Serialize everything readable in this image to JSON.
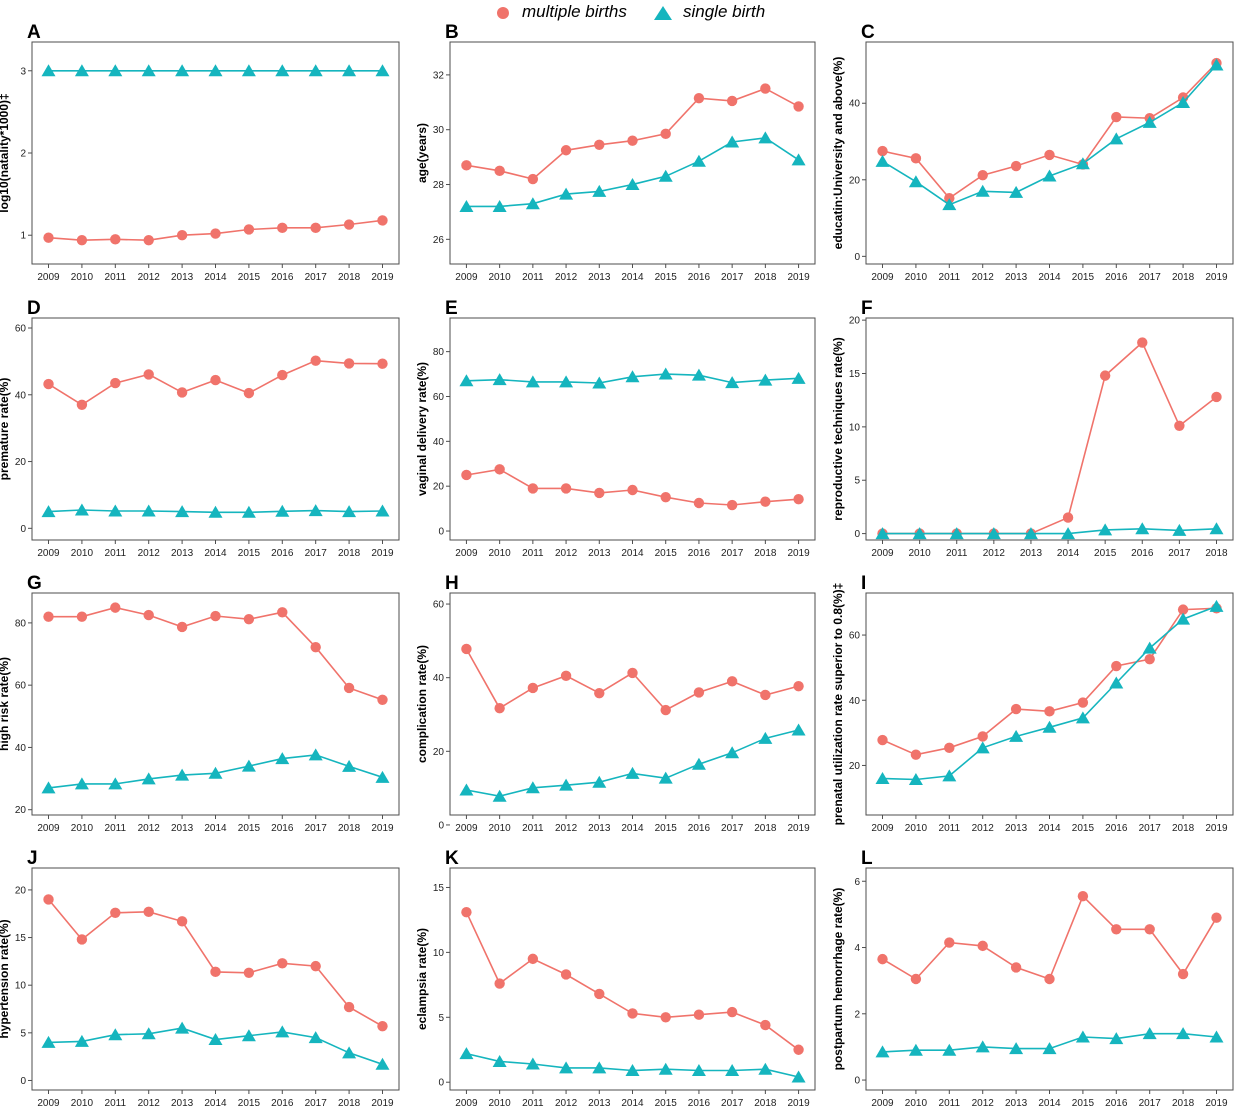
{
  "legend": {
    "multiple_label": "multiple births",
    "single_label": "single birth"
  },
  "colors": {
    "multiple": "#F0736B",
    "single": "#15B5BE",
    "frame": "#4d4d4d",
    "grid": "#ebebeb"
  },
  "chart_data": [
    {
      "tag": "A",
      "type": "line",
      "ylabel": "log10(natality*1000)‡",
      "x": [
        "2009",
        "2010",
        "2011",
        "2012",
        "2013",
        "2014",
        "2015",
        "2016",
        "2017",
        "2018",
        "2019"
      ],
      "ylim": [
        0.65,
        3.35
      ],
      "yticks": [
        1,
        2,
        3
      ],
      "series": [
        {
          "name": "multiple births",
          "values": [
            0.97,
            0.94,
            0.95,
            0.94,
            1.0,
            1.02,
            1.07,
            1.09,
            1.09,
            1.13,
            1.18
          ]
        },
        {
          "name": "single birth",
          "values": [
            3.0,
            3.0,
            3.0,
            3.0,
            3.0,
            3.0,
            3.0,
            3.0,
            3.0,
            3.0,
            3.0
          ]
        }
      ]
    },
    {
      "tag": "B",
      "type": "line",
      "ylabel": "age(years)",
      "x": [
        "2009",
        "2010",
        "2011",
        "2012",
        "2013",
        "2014",
        "2015",
        "2016",
        "2017",
        "2018",
        "2019"
      ],
      "ylim": [
        25.1,
        33.2
      ],
      "yticks": [
        26,
        28,
        30,
        32
      ],
      "series": [
        {
          "name": "multiple births",
          "values": [
            28.7,
            28.5,
            28.2,
            29.25,
            29.45,
            29.6,
            29.85,
            31.15,
            31.05,
            31.5,
            30.85
          ]
        },
        {
          "name": "single birth",
          "values": [
            27.2,
            27.2,
            27.3,
            27.65,
            27.75,
            28.0,
            28.3,
            28.85,
            29.55,
            29.7,
            28.9
          ]
        }
      ]
    },
    {
      "tag": "C",
      "type": "line",
      "ylabel": "educatin:University and above(%)",
      "x": [
        "2009",
        "2010",
        "2011",
        "2012",
        "2013",
        "2014",
        "2015",
        "2016",
        "2017",
        "2018",
        "2019"
      ],
      "ylim": [
        -2,
        56
      ],
      "yticks": [
        0,
        20,
        40
      ],
      "series": [
        {
          "name": "multiple births",
          "values": [
            27.5,
            25.6,
            15.2,
            21.2,
            23.6,
            26.5,
            24.0,
            36.4,
            36.1,
            41.5,
            50.5
          ]
        },
        {
          "name": "single birth",
          "values": [
            24.8,
            19.5,
            13.5,
            17.0,
            16.7,
            21.0,
            24.2,
            30.7,
            35.0,
            40.2,
            50.0
          ]
        }
      ]
    },
    {
      "tag": "D",
      "type": "line",
      "ylabel": "premature rate(%)",
      "x": [
        "2009",
        "2010",
        "2011",
        "2012",
        "2013",
        "2014",
        "2015",
        "2016",
        "2017",
        "2018",
        "2019"
      ],
      "ylim": [
        -3.5,
        63
      ],
      "yticks": [
        0,
        20,
        40,
        60
      ],
      "series": [
        {
          "name": "multiple births",
          "values": [
            43.2,
            37.0,
            43.5,
            46.1,
            40.7,
            44.4,
            40.5,
            45.9,
            50.2,
            49.4,
            49.3
          ]
        },
        {
          "name": "single birth",
          "values": [
            5.0,
            5.5,
            5.2,
            5.2,
            5.0,
            4.8,
            4.8,
            5.1,
            5.3,
            5.0,
            5.2
          ]
        }
      ]
    },
    {
      "tag": "E",
      "type": "line",
      "ylabel": "vaginal delivery rate(%)",
      "x": [
        "2009",
        "2010",
        "2011",
        "2012",
        "2013",
        "2014",
        "2015",
        "2016",
        "2017",
        "2018",
        "2019"
      ],
      "ylim": [
        -4,
        95
      ],
      "yticks": [
        0,
        20,
        40,
        60,
        80
      ],
      "series": [
        {
          "name": "multiple births",
          "values": [
            25.0,
            27.5,
            19.0,
            19.0,
            17.0,
            18.3,
            15.1,
            12.5,
            11.6,
            13.1,
            14.2
          ]
        },
        {
          "name": "single birth",
          "values": [
            67.0,
            67.5,
            66.5,
            66.5,
            66.0,
            68.8,
            70.0,
            69.5,
            66.2,
            67.3,
            68.1
          ]
        }
      ]
    },
    {
      "tag": "F",
      "type": "line",
      "ylabel": "reproductive techniques rate(%)",
      "x": [
        "2009",
        "2010",
        "2011",
        "2012",
        "2013",
        "2014",
        "2015",
        "2016",
        "2017",
        "2018"
      ],
      "ylim": [
        -0.6,
        20.2
      ],
      "yticks": [
        0,
        5,
        10,
        15,
        20
      ],
      "series": [
        {
          "name": "multiple births",
          "values": [
            0,
            0,
            0,
            0,
            0,
            1.5,
            14.8,
            17.9,
            10.1,
            12.8
          ]
        },
        {
          "name": "single birth",
          "values": [
            0,
            0,
            0,
            0,
            0,
            0,
            0.35,
            0.45,
            0.3,
            0.45
          ]
        }
      ]
    },
    {
      "tag": "G",
      "type": "line",
      "ylabel": "high risk rate(%)",
      "x": [
        "2009",
        "2010",
        "2011",
        "2012",
        "2013",
        "2014",
        "2015",
        "2016",
        "2017",
        "2018",
        "2019"
      ],
      "ylim": [
        18.3,
        89.6
      ],
      "yticks": [
        20,
        40,
        60,
        80
      ],
      "series": [
        {
          "name": "multiple births",
          "values": [
            82.0,
            82.0,
            84.9,
            82.5,
            78.7,
            82.2,
            81.2,
            83.4,
            72.2,
            59.1,
            55.3
          ]
        },
        {
          "name": "single birth",
          "values": [
            27.0,
            28.3,
            28.3,
            29.9,
            31.1,
            31.7,
            34.0,
            36.4,
            37.6,
            33.9,
            30.4
          ]
        }
      ]
    },
    {
      "tag": "H",
      "type": "line",
      "ylabel": "complication rate(%)",
      "x": [
        "2009",
        "2010",
        "2011",
        "2012",
        "2013",
        "2014",
        "2015",
        "2016",
        "2017",
        "2018",
        "2019"
      ],
      "ylim": [
        2.7,
        63
      ],
      "yticks": [
        0,
        20,
        40,
        60
      ],
      "series": [
        {
          "name": "multiple births",
          "values": [
            47.8,
            31.7,
            37.2,
            40.5,
            35.8,
            41.3,
            31.2,
            36.0,
            39.0,
            35.3,
            37.7
          ]
        },
        {
          "name": "single birth",
          "values": [
            9.5,
            7.8,
            10.1,
            10.8,
            11.6,
            14.0,
            12.7,
            16.5,
            19.6,
            23.5,
            25.8
          ]
        }
      ]
    },
    {
      "tag": "I",
      "type": "line",
      "ylabel": "prenatal utilization rate superior to 0.8(%)‡",
      "x": [
        "2009",
        "2010",
        "2011",
        "2012",
        "2013",
        "2014",
        "2015",
        "2016",
        "2017",
        "2018",
        "2019"
      ],
      "ylim": [
        4.8,
        72.9
      ],
      "yticks": [
        20,
        40,
        60
      ],
      "series": [
        {
          "name": "multiple births",
          "values": [
            27.8,
            23.3,
            25.4,
            28.9,
            37.3,
            36.6,
            39.3,
            50.5,
            52.6,
            67.8,
            68.2
          ]
        },
        {
          "name": "single birth",
          "values": [
            16.0,
            15.7,
            16.8,
            25.4,
            28.9,
            31.7,
            34.6,
            45.3,
            56.0,
            64.9,
            68.8
          ]
        }
      ]
    },
    {
      "tag": "J",
      "type": "line",
      "ylabel": "hypertension rate(%)",
      "x": [
        "2009",
        "2010",
        "2011",
        "2012",
        "2013",
        "2014",
        "2015",
        "2016",
        "2017",
        "2018",
        "2019"
      ],
      "ylim": [
        -1,
        22.3
      ],
      "yticks": [
        0,
        5,
        10,
        15,
        20
      ],
      "series": [
        {
          "name": "multiple births",
          "values": [
            19.0,
            14.8,
            17.6,
            17.7,
            16.7,
            11.4,
            11.3,
            12.3,
            12.0,
            7.7,
            5.7
          ]
        },
        {
          "name": "single birth",
          "values": [
            4.0,
            4.1,
            4.8,
            4.9,
            5.5,
            4.3,
            4.7,
            5.1,
            4.5,
            2.9,
            1.7
          ]
        }
      ]
    },
    {
      "tag": "K",
      "type": "line",
      "ylabel": "eclampsia rate(%)",
      "x": [
        "2009",
        "2010",
        "2011",
        "2012",
        "2013",
        "2014",
        "2015",
        "2016",
        "2017",
        "2018",
        "2019"
      ],
      "ylim": [
        -0.6,
        16.5
      ],
      "yticks": [
        0,
        5,
        10,
        15
      ],
      "series": [
        {
          "name": "multiple births",
          "values": [
            13.1,
            7.6,
            9.5,
            8.3,
            6.8,
            5.3,
            5.0,
            5.2,
            5.4,
            4.4,
            2.5
          ]
        },
        {
          "name": "single birth",
          "values": [
            2.2,
            1.6,
            1.4,
            1.1,
            1.1,
            0.9,
            1.0,
            0.9,
            0.9,
            1.0,
            0.4
          ]
        }
      ]
    },
    {
      "tag": "L",
      "type": "line",
      "ylabel": "postpartum hemorrhage rate(%)",
      "x": [
        "2009",
        "2010",
        "2011",
        "2012",
        "2013",
        "2014",
        "2015",
        "2016",
        "2017",
        "2018",
        "2019"
      ],
      "ylim": [
        -0.3,
        6.4
      ],
      "yticks": [
        0,
        2,
        4,
        6
      ],
      "series": [
        {
          "name": "multiple births",
          "values": [
            3.65,
            3.05,
            4.15,
            4.05,
            3.4,
            3.05,
            5.55,
            4.55,
            4.55,
            3.2,
            4.9
          ]
        },
        {
          "name": "single birth",
          "values": [
            0.85,
            0.9,
            0.9,
            1.0,
            0.95,
            0.95,
            1.3,
            1.25,
            1.4,
            1.4,
            1.3
          ]
        }
      ]
    }
  ]
}
